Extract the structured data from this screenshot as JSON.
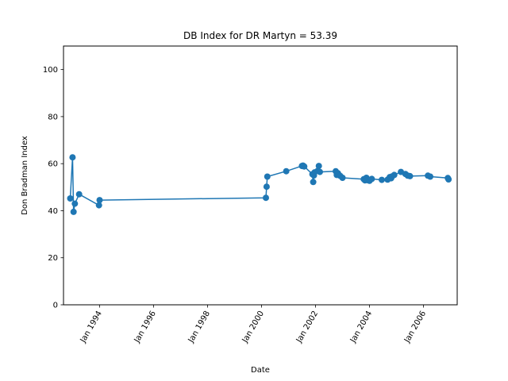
{
  "chart_data": {
    "type": "line",
    "title": "DB Index for DR Martyn = 53.39",
    "xlabel": "Date",
    "ylabel": "Don Bradman Index",
    "ylim": [
      0,
      110
    ],
    "xlim": [
      "1992-09-01",
      "2007-04-01"
    ],
    "yticks": [
      0,
      20,
      40,
      60,
      80,
      100
    ],
    "xticks": [
      {
        "date": "1994-01-01",
        "label": "Jan 1994"
      },
      {
        "date": "1996-01-01",
        "label": "Jan 1996"
      },
      {
        "date": "1998-01-01",
        "label": "Jan 1998"
      },
      {
        "date": "2000-01-01",
        "label": "Jan 2000"
      },
      {
        "date": "2002-01-01",
        "label": "Jan 2002"
      },
      {
        "date": "2004-01-01",
        "label": "Jan 2004"
      },
      {
        "date": "2006-01-01",
        "label": "Jan 2006"
      }
    ],
    "grid": false,
    "legend": "none",
    "color": "#1f77b4",
    "series": [
      {
        "x": [
          "1992-12-01",
          "1993-01-01",
          "1993-01-15",
          "1993-02-01",
          "1993-04-01",
          "1993-12-25",
          "1994-01-02",
          "2000-03-01",
          "2000-03-10",
          "2000-03-20",
          "2000-12-01",
          "2001-07-01",
          "2001-07-15",
          "2001-08-01",
          "2001-11-20",
          "2001-12-01",
          "2001-12-10",
          "2001-12-20",
          "2002-02-01",
          "2002-02-15",
          "2002-03-01",
          "2002-10-01",
          "2002-10-15",
          "2002-11-01",
          "2002-12-01",
          "2003-01-01",
          "2003-10-15",
          "2003-11-01",
          "2003-11-20",
          "2003-12-01",
          "2004-01-01",
          "2004-02-01",
          "2004-06-15",
          "2004-09-01",
          "2004-10-01",
          "2004-10-20",
          "2004-11-01",
          "2004-12-01",
          "2005-03-01",
          "2005-05-01",
          "2005-06-01",
          "2005-07-01",
          "2006-03-01",
          "2006-04-01",
          "2006-11-25",
          "2006-12-05"
        ],
        "y": [
          45.2,
          62.7,
          39.5,
          43.0,
          47.0,
          42.3,
          44.5,
          45.5,
          50.2,
          54.5,
          56.8,
          59.0,
          59.2,
          58.8,
          55.5,
          52.2,
          55.0,
          56.3,
          57.0,
          59.0,
          56.5,
          56.8,
          55.2,
          55.9,
          54.8,
          54.0,
          53.4,
          52.9,
          54.0,
          53.0,
          52.7,
          53.5,
          53.1,
          53.2,
          54.3,
          53.8,
          54.6,
          55.2,
          56.5,
          55.6,
          54.9,
          54.7,
          54.9,
          54.5,
          53.9,
          53.3
        ]
      }
    ]
  }
}
